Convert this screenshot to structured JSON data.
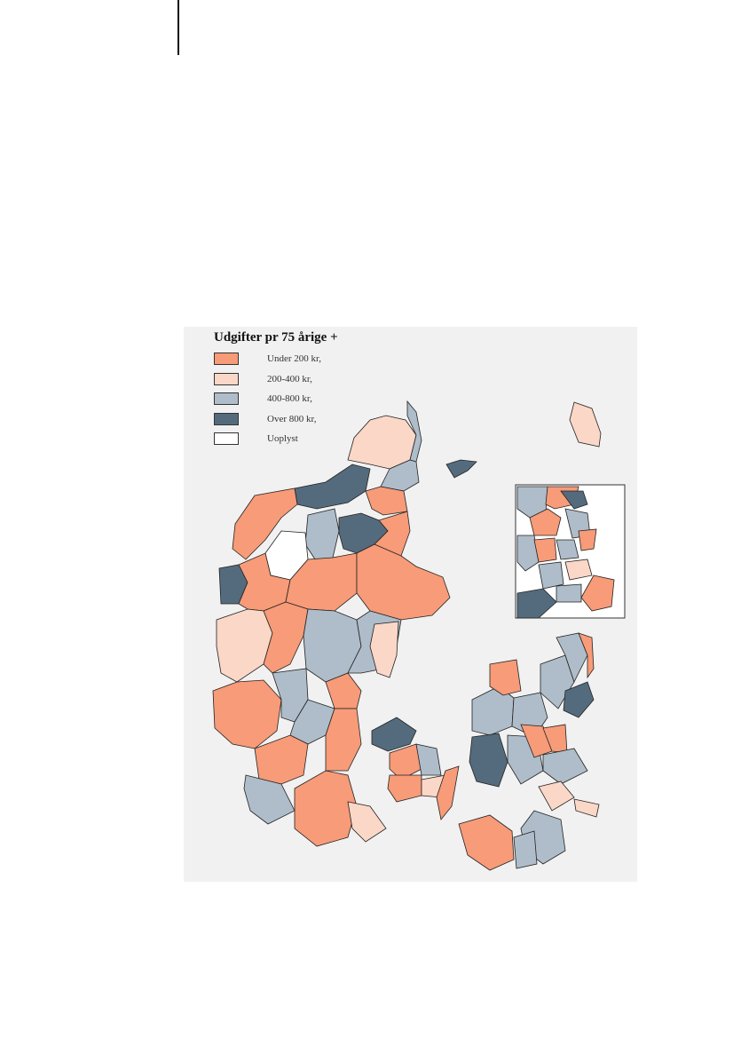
{
  "legend": {
    "title": "Udgifter pr 75 årige +",
    "items": [
      {
        "label": "Under 200 kr,",
        "color": "#f79b78"
      },
      {
        "label": "200-400 kr,",
        "color": "#fbd7c7"
      },
      {
        "label": "400-800 kr,",
        "color": "#aebdc9"
      },
      {
        "label": "Over 800 kr,",
        "color": "#546b7d"
      },
      {
        "label": "Uoplyst",
        "color": "#ffffff"
      }
    ]
  },
  "colors": {
    "under_200": "#f79b78",
    "r200_400": "#fbd7c7",
    "r400_800": "#aebdc9",
    "over_800": "#546b7d",
    "uoplyst": "#ffffff",
    "sea": "#f1f1f1"
  }
}
